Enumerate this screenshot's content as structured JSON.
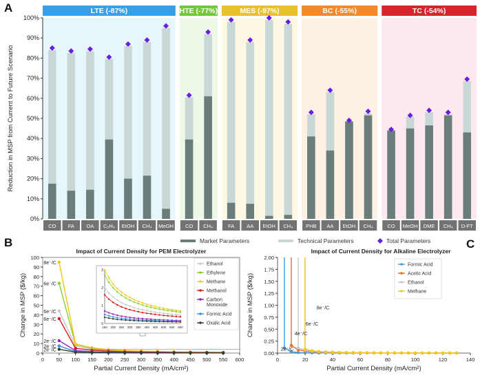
{
  "panel_letters": {
    "a": "A",
    "b": "B",
    "c": "C"
  },
  "colors": {
    "market": "#6b7d7a",
    "technical": "#c9d7d6",
    "total": "#6b1de0"
  },
  "chart_data": [
    {
      "id": "A",
      "type": "bar",
      "ylabel": "Reduction in MSP from Current to Future Scenario",
      "ylim": [
        0,
        100
      ],
      "yticks": [
        0,
        10,
        20,
        30,
        40,
        50,
        60,
        70,
        80,
        90,
        100
      ],
      "ytick_labels": [
        "0%",
        "10%",
        "20%",
        "30%",
        "40%",
        "50%",
        "60%",
        "70%",
        "80%",
        "90%",
        "100%"
      ],
      "legend": {
        "market": "Market Parameters",
        "technical": "Technical Parameters",
        "total": "Total Parameters"
      },
      "groups": [
        {
          "label": "LTE (-87%)",
          "header_color": "#3aa0e6",
          "bg_color": "#e7f6fb",
          "categories": [
            "CO",
            "FA",
            "OA",
            "C₂H₄",
            "EtOH",
            "CH₄",
            "MeOH"
          ],
          "market": [
            17.5,
            14,
            14.5,
            39.5,
            20,
            21.5,
            5
          ],
          "technical": [
            84,
            82.5,
            83.5,
            79.5,
            86,
            88,
            95
          ],
          "total": [
            85,
            83.5,
            84.5,
            80.5,
            87,
            89,
            96
          ]
        },
        {
          "label": "HTE (-77%)",
          "header_color": "#74c63e",
          "bg_color": "#eef8e6",
          "categories": [
            "CO",
            "CH₄"
          ],
          "market": [
            39.5,
            61
          ],
          "technical": [
            60.5,
            92
          ],
          "total": [
            61.5,
            93
          ]
        },
        {
          "label": "MES (-97%)",
          "header_color": "#e8c22e",
          "bg_color": "#fdf8e4",
          "categories": [
            "FA",
            "AA",
            "EtOH",
            "CH₄"
          ],
          "market": [
            8,
            7.5,
            1.5,
            2
          ],
          "technical": [
            98,
            88,
            99,
            97
          ],
          "total": [
            99,
            89,
            100,
            98
          ]
        },
        {
          "label": "BC (-55%)",
          "header_color": "#f08a2c",
          "bg_color": "#fdf1e6",
          "categories": [
            "PHB",
            "AA",
            "EtOH",
            "CH₄"
          ],
          "market": [
            41,
            34,
            48.5,
            51.5
          ],
          "technical": [
            52,
            63,
            48.5,
            52.5
          ],
          "total": [
            53,
            64,
            49,
            53.5
          ]
        },
        {
          "label": "TC (-54%)",
          "header_color": "#d4262c",
          "bg_color": "#fbe9ef",
          "categories": [
            "CO",
            "MeOH",
            "DME",
            "CH₄",
            "D-FT"
          ],
          "market": [
            44,
            45,
            46.5,
            51.5,
            43
          ],
          "technical": [
            44,
            51,
            53,
            52,
            68.5
          ],
          "total": [
            44.5,
            51.5,
            54,
            53,
            69.5
          ]
        }
      ]
    },
    {
      "id": "B",
      "type": "line",
      "title": "Impact of Current Density for PEM Electrolyzer",
      "xlabel": "Partial Current Density (mA/cm²)",
      "ylabel": "Change in MSP ($/kg)",
      "xlim": [
        0,
        600
      ],
      "ylim": [
        0,
        100
      ],
      "xticks": [
        0,
        50,
        100,
        150,
        200,
        250,
        300,
        350,
        400,
        450,
        500,
        550,
        600
      ],
      "yticks": [
        0,
        10,
        20,
        30,
        40,
        50,
        60,
        70,
        80,
        90,
        100
      ],
      "x": [
        50,
        100,
        150,
        200,
        250,
        300,
        350,
        400,
        450,
        500,
        550
      ],
      "series": [
        {
          "name": "Ethanol",
          "color": "#c8c8c8",
          "values": [
            44,
            7.5,
            4,
            2.5,
            1.9,
            1.4,
            1.1,
            0.9,
            0.8,
            0.7,
            0.6
          ]
        },
        {
          "name": "Ethylene",
          "color": "#8ccf2e",
          "values": [
            73,
            9,
            5,
            3.2,
            2.4,
            1.9,
            1.5,
            1.2,
            1.0,
            0.9,
            0.8
          ]
        },
        {
          "name": "Methane",
          "color": "#f5c518",
          "values": [
            95,
            9.5,
            5.5,
            3.6,
            2.7,
            2.1,
            1.7,
            1.4,
            1.2,
            1.0,
            0.9
          ]
        },
        {
          "name": "Methanol",
          "color": "#d7191c",
          "values": [
            36,
            5,
            3,
            2.0,
            1.5,
            1.2,
            1.0,
            0.8,
            0.7,
            0.6,
            0.5
          ]
        },
        {
          "name": "Carbon Monoxide",
          "color": "#9b1fb8",
          "values": [
            13,
            2.6,
            1.5,
            1.0,
            0.8,
            0.6,
            0.5,
            0.4,
            0.35,
            0.3,
            0.28
          ]
        },
        {
          "name": "Formic Acid",
          "color": "#3a8ee0",
          "values": [
            7.5,
            1.6,
            0.9,
            0.6,
            0.5,
            0.4,
            0.33,
            0.28,
            0.24,
            0.21,
            0.19
          ]
        },
        {
          "name": "Oxalic Acid",
          "color": "#2c3e2a",
          "values": [
            4,
            1,
            0.6,
            0.4,
            0.3,
            0.25,
            0.21,
            0.18,
            0.16,
            0.14,
            0.12
          ]
        }
      ],
      "electron_labels": [
        {
          "text": "8e⁻/C",
          "x": 50,
          "y": 95
        },
        {
          "text": "6e⁻/C",
          "x": 50,
          "y": 73
        },
        {
          "text": "6e⁻/C",
          "x": 50,
          "y": 44
        },
        {
          "text": "6e⁻/C",
          "x": 50,
          "y": 36
        },
        {
          "text": "2e⁻/C",
          "x": 50,
          "y": 13
        },
        {
          "text": "2e⁻/C",
          "x": 50,
          "y": 7.5
        },
        {
          "text": "2e⁻/C",
          "x": 50,
          "y": 4
        }
      ],
      "inset": {
        "xlim": [
          150,
          600
        ],
        "ylim": [
          0,
          3
        ],
        "xticks": [
          150,
          200,
          250,
          300,
          350,
          400,
          450,
          500,
          550,
          600
        ],
        "yticks": [
          0,
          1,
          2,
          3
        ],
        "x": [
          150,
          175,
          200,
          225,
          250,
          275,
          300,
          325,
          350,
          375,
          400,
          425,
          450,
          475,
          500,
          525,
          550,
          575,
          600
        ],
        "series": [
          {
            "name": "Methane",
            "values": [
              3.0,
              2.55,
              2.2,
              1.95,
              1.75,
              1.58,
              1.45,
              1.33,
              1.23,
              1.15,
              1.07,
              1.0,
              0.95,
              0.9,
              0.85,
              0.81,
              0.77,
              0.73,
              0.7
            ]
          },
          {
            "name": "Ethylene",
            "values": [
              2.7,
              2.3,
              2.0,
              1.77,
              1.58,
              1.43,
              1.3,
              1.2,
              1.11,
              1.03,
              0.96,
              0.9,
              0.85,
              0.8,
              0.76,
              0.72,
              0.69,
              0.66,
              0.63
            ]
          },
          {
            "name": "Ethanol",
            "values": [
              2.0,
              1.7,
              1.48,
              1.3,
              1.17,
              1.06,
              0.97,
              0.89,
              0.82,
              0.77,
              0.72,
              0.67,
              0.63,
              0.6,
              0.57,
              0.54,
              0.51,
              0.49,
              0.47
            ]
          },
          {
            "name": "Methanol",
            "values": [
              1.6,
              1.36,
              1.18,
              1.04,
              0.93,
              0.84,
              0.77,
              0.71,
              0.66,
              0.61,
              0.57,
              0.54,
              0.51,
              0.48,
              0.45,
              0.43,
              0.41,
              0.39,
              0.37
            ]
          },
          {
            "name": "Carbon Monoxide",
            "values": [
              0.7,
              0.6,
              0.52,
              0.46,
              0.41,
              0.37,
              0.34,
              0.31,
              0.29,
              0.27,
              0.25,
              0.24,
              0.22,
              0.21,
              0.2,
              0.19,
              0.18,
              0.17,
              0.16
            ]
          },
          {
            "name": "Formic Acid",
            "values": [
              0.5,
              0.43,
              0.37,
              0.33,
              0.29,
              0.26,
              0.24,
              0.22,
              0.21,
              0.19,
              0.18,
              0.17,
              0.16,
              0.15,
              0.14,
              0.135,
              0.13,
              0.125,
              0.12
            ]
          },
          {
            "name": "Oxalic Acid",
            "values": [
              0.35,
              0.3,
              0.26,
              0.23,
              0.21,
              0.19,
              0.17,
              0.16,
              0.15,
              0.14,
              0.13,
              0.12,
              0.115,
              0.11,
              0.105,
              0.1,
              0.095,
              0.09,
              0.085
            ]
          }
        ]
      }
    },
    {
      "id": "C",
      "type": "line",
      "title": "Impact of Current Density for Alkaline Electrolyzer",
      "xlabel": "Partial Current Density (mA/cm²)",
      "ylabel": "Change in MSP ($/kg)",
      "xlim": [
        0,
        140
      ],
      "ylim": [
        0,
        2
      ],
      "xticks": [
        0,
        20,
        40,
        60,
        80,
        100,
        120,
        140
      ],
      "yticks": [
        0,
        0.25,
        0.5,
        0.75,
        1.0,
        1.25,
        1.5,
        1.75,
        2.0
      ],
      "ytick_labels": [
        "0.00",
        "0.25",
        "0.50",
        "0.75",
        "1.00",
        "1.25",
        "1.50",
        "1.75",
        "2.00"
      ],
      "series": [
        {
          "name": "Formic Acid",
          "color": "#3a9be6",
          "k": 2.7,
          "x": [
            5,
            10,
            15,
            20,
            25,
            30,
            35,
            40,
            45,
            50,
            55,
            60,
            65,
            70,
            75,
            80,
            85,
            90,
            95,
            100,
            105,
            110,
            115,
            120,
            125,
            130
          ]
        },
        {
          "name": "Acetic Acid",
          "color": "#ee6a1c",
          "k": 16,
          "x": [
            10,
            15,
            20,
            25,
            30,
            35,
            40,
            45,
            50,
            55,
            60,
            65,
            70,
            75,
            80,
            85,
            90,
            95,
            100,
            105,
            110,
            115,
            120,
            125,
            130
          ]
        },
        {
          "name": "Ethanol",
          "color": "#c8c8c8",
          "k": 24,
          "x": [
            15,
            20,
            25,
            30,
            35,
            40,
            45,
            50,
            55,
            60,
            65,
            70,
            75,
            80,
            85,
            90,
            95,
            100,
            105,
            110,
            115,
            120,
            125,
            130
          ]
        },
        {
          "name": "Methane",
          "color": "#f5c518",
          "k": 32,
          "x": [
            20,
            25,
            30,
            35,
            40,
            45,
            50,
            55,
            60,
            65,
            70,
            75,
            80,
            85,
            90,
            95,
            100,
            105,
            110,
            115,
            120,
            125,
            130
          ]
        }
      ],
      "electron_labels": [
        {
          "text": "2e⁻/C",
          "x": 7,
          "y": 0.09
        },
        {
          "text": "4e⁻/C",
          "x": 17,
          "y": 0.42
        },
        {
          "text": "6e⁻/C",
          "x": 25,
          "y": 0.62
        },
        {
          "text": "8e⁻/C",
          "x": 33,
          "y": 0.96
        }
      ]
    }
  ]
}
